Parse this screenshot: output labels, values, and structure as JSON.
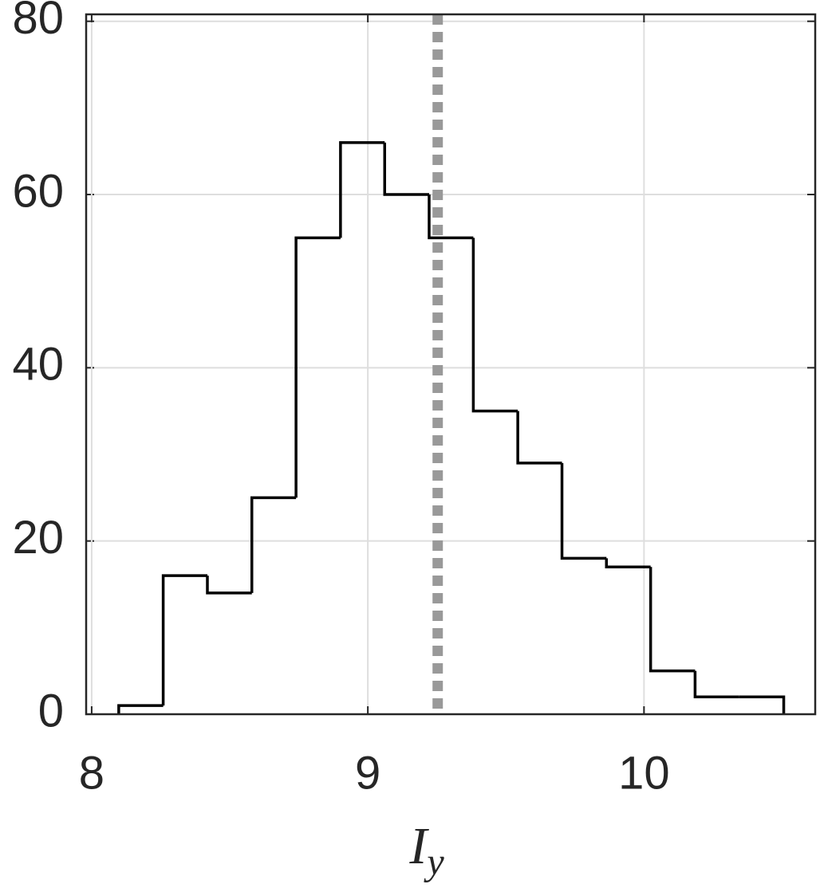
{
  "chart_data": {
    "type": "histogram",
    "bins": [
      8.098,
      8.259,
      8.419,
      8.58,
      8.74,
      8.901,
      9.061,
      9.222,
      9.382,
      9.543,
      9.703,
      9.864,
      10.024,
      10.185,
      10.345,
      10.506
    ],
    "values": [
      1,
      16,
      14,
      25,
      55,
      66,
      60,
      55,
      35,
      29,
      18,
      17,
      5,
      2,
      2
    ],
    "color": "#000000",
    "reference_x": 9.253,
    "reference_color": "#999999",
    "xlabel": "I",
    "xlabel_subscript": "y",
    "xlim": [
      7.98,
      10.62
    ],
    "xticks": [
      8,
      9,
      10
    ],
    "ylim": [
      0,
      80.8
    ],
    "yticks": [
      0,
      20,
      40,
      60,
      80
    ],
    "grid": true
  }
}
